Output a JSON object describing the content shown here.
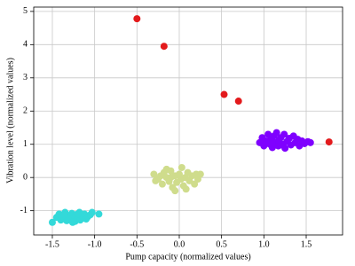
{
  "chart_data": {
    "type": "scatter",
    "x_label": "Pump capacity (normalized values)",
    "y_label": "Vibration level (normalized values)",
    "xlim": [
      -1.72,
      1.93
    ],
    "ylim": [
      -1.73,
      5.13
    ],
    "xticks": [
      -1.5,
      {
        "value": -1.0,
        "label": "-1.0"
      },
      -0.5,
      {
        "value": 0,
        "label": "0.0"
      },
      0.5,
      {
        "value": 1.0,
        "label": "1.0"
      },
      1.5
    ],
    "yticks": [
      -1,
      0,
      1,
      2,
      3,
      4,
      5
    ],
    "grid": true,
    "series": [
      {
        "color": "#33d9d9",
        "x": [
          -1.5,
          -1.45,
          -1.42,
          -1.4,
          -1.38,
          -1.35,
          -1.33,
          -1.3,
          -1.28,
          -1.27,
          -1.25,
          -1.23,
          -1.22,
          -1.2,
          -1.18,
          -1.17,
          -1.15,
          -1.13,
          -1.12,
          -1.1,
          -1.08,
          -1.05,
          -1.03,
          -0.95,
          -1.32,
          -1.26,
          -1.2,
          -1.36
        ],
        "y": [
          -1.35,
          -1.2,
          -1.1,
          -1.28,
          -1.18,
          -1.05,
          -1.3,
          -1.15,
          -1.25,
          -1.08,
          -1.2,
          -1.32,
          -1.12,
          -1.22,
          -1.05,
          -1.28,
          -1.15,
          -1.22,
          -1.1,
          -1.25,
          -1.18,
          -1.12,
          -1.05,
          -1.1,
          -1.22,
          -1.35,
          -1.1,
          -1.12
        ]
      },
      {
        "color": "#cfdc8c",
        "x": [
          -0.3,
          -0.28,
          -0.25,
          -0.22,
          -0.2,
          -0.18,
          -0.15,
          -0.12,
          -0.1,
          -0.08,
          -0.05,
          -0.03,
          0,
          0.02,
          0.03,
          0.05,
          0.07,
          0.1,
          0.12,
          0.15,
          0.18,
          0.2,
          0.22,
          0.25,
          -0.05,
          -0.1,
          0.08,
          -0.15
        ],
        "y": [
          0.1,
          -0.1,
          -0.05,
          0.05,
          -0.2,
          0.15,
          0,
          -0.12,
          0.2,
          -0.3,
          0.05,
          -0.15,
          0.1,
          -0.05,
          0.3,
          -0.25,
          0,
          0.15,
          -0.1,
          0.05,
          -0.2,
          0.1,
          -0.05,
          0.1,
          -0.4,
          0,
          -0.35,
          0.25
        ]
      },
      {
        "color": "#7f00ff",
        "x": [
          0.95,
          0.98,
          1.0,
          1.02,
          1.05,
          1.07,
          1.08,
          1.1,
          1.12,
          1.13,
          1.15,
          1.17,
          1.18,
          1.2,
          1.22,
          1.24,
          1.25,
          1.27,
          1.3,
          1.32,
          1.35,
          1.37,
          1.4,
          1.42,
          1.45,
          1.48,
          1.52,
          1.55,
          1.1,
          1.2
        ],
        "y": [
          1.05,
          1.2,
          0.95,
          1.1,
          1.3,
          1.0,
          1.15,
          0.9,
          1.25,
          1.05,
          1.35,
          0.95,
          1.12,
          1.2,
          1.0,
          1.3,
          0.88,
          1.08,
          1.18,
          0.98,
          1.25,
          1.05,
          1.15,
          0.95,
          1.1,
          1.02,
          1.08,
          1.05,
          1.05,
          0.98
        ]
      },
      {
        "color": "#e31a1c",
        "x": [
          -0.5,
          -0.18,
          0.53,
          0.7,
          1.77
        ],
        "y": [
          4.78,
          3.95,
          2.5,
          2.3,
          1.07
        ]
      }
    ]
  }
}
